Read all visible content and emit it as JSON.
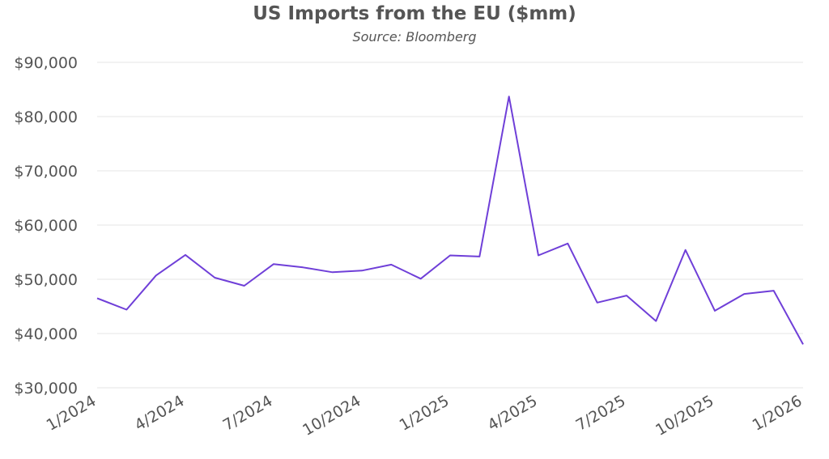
{
  "chart_data": {
    "type": "line",
    "title": "US Imports from the EU ($mm)",
    "subtitle": "Source: Bloomberg",
    "xlabel": "",
    "ylabel": "",
    "x": [
      "1/2024",
      "2/2024",
      "3/2024",
      "4/2024",
      "5/2024",
      "6/2024",
      "7/2024",
      "8/2024",
      "9/2024",
      "10/2024",
      "11/2024",
      "12/2024",
      "1/2025",
      "2/2025",
      "3/2025",
      "4/2025",
      "5/2025",
      "6/2025",
      "7/2025",
      "8/2025",
      "9/2025",
      "10/2025",
      "11/2025",
      "12/2025",
      "1/2026"
    ],
    "x_tick_labels": [
      "1/2024",
      "4/2024",
      "7/2024",
      "10/2024",
      "1/2025",
      "4/2025",
      "7/2025",
      "10/2025",
      "1/2026"
    ],
    "y_tick_labels": [
      "$30,000",
      "$40,000",
      "$50,000",
      "$60,000",
      "$70,000",
      "$80,000",
      "$90,000"
    ],
    "ylim": [
      30000,
      90000
    ],
    "y_ticks": [
      30000,
      40000,
      50000,
      60000,
      70000,
      80000,
      90000
    ],
    "grid": true,
    "legend": "none",
    "series": [
      {
        "color": "#6f3fd8",
        "values": [
          46500,
          44400,
          50700,
          54500,
          50300,
          48800,
          52800,
          52200,
          51300,
          51600,
          52700,
          50100,
          54400,
          54200,
          83700,
          54400,
          56600,
          45700,
          47000,
          42300,
          55400,
          44200,
          47300,
          47900,
          38000
        ]
      }
    ],
    "colors": {
      "line": "#6f3fd8",
      "grid": "#e6e6e6",
      "text": "#555555"
    }
  }
}
